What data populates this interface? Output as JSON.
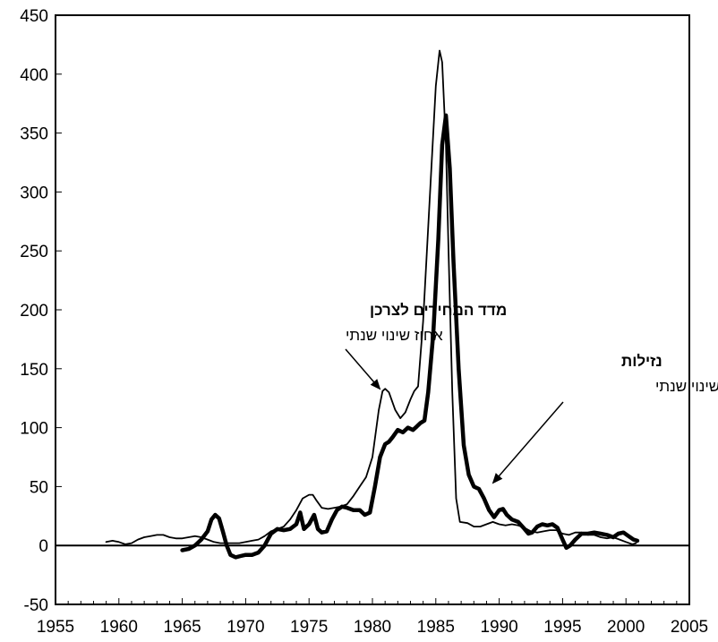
{
  "chart_data": {
    "type": "line",
    "title": "",
    "xlabel": "",
    "ylabel": "",
    "xlim": [
      1955,
      2005
    ],
    "ylim": [
      -50,
      450
    ],
    "x_ticks": [
      1955,
      1960,
      1965,
      1970,
      1975,
      1980,
      1985,
      1990,
      1995,
      2000,
      2005
    ],
    "y_ticks": [
      -50,
      0,
      50,
      100,
      150,
      200,
      250,
      300,
      350,
      400,
      450
    ],
    "grid": false,
    "legend": "none",
    "zero_line": true,
    "series": [
      {
        "name": "מדד המחירים לצרכן",
        "style": "thin",
        "color": "#000000",
        "points": [
          [
            1959.0,
            3
          ],
          [
            1959.5,
            4
          ],
          [
            1960.0,
            3
          ],
          [
            1960.5,
            1
          ],
          [
            1961.0,
            2
          ],
          [
            1961.5,
            5
          ],
          [
            1962.0,
            7
          ],
          [
            1962.5,
            8
          ],
          [
            1963.0,
            9
          ],
          [
            1963.5,
            9
          ],
          [
            1964.0,
            7
          ],
          [
            1964.5,
            6
          ],
          [
            1965.0,
            6
          ],
          [
            1965.5,
            7
          ],
          [
            1966.0,
            8
          ],
          [
            1966.5,
            7
          ],
          [
            1967.0,
            5
          ],
          [
            1967.5,
            3
          ],
          [
            1968.0,
            2
          ],
          [
            1968.5,
            2
          ],
          [
            1969.0,
            2
          ],
          [
            1969.5,
            2
          ],
          [
            1970.0,
            3
          ],
          [
            1970.5,
            4
          ],
          [
            1971.0,
            5
          ],
          [
            1971.5,
            8
          ],
          [
            1972.0,
            12
          ],
          [
            1972.5,
            14
          ],
          [
            1973.0,
            16
          ],
          [
            1973.5,
            22
          ],
          [
            1974.0,
            30
          ],
          [
            1974.5,
            40
          ],
          [
            1975.0,
            43
          ],
          [
            1975.3,
            43
          ],
          [
            1975.6,
            38
          ],
          [
            1976.0,
            32
          ],
          [
            1976.5,
            31
          ],
          [
            1977.0,
            32
          ],
          [
            1977.5,
            33
          ],
          [
            1978.0,
            35
          ],
          [
            1978.5,
            42
          ],
          [
            1979.0,
            50
          ],
          [
            1979.5,
            58
          ],
          [
            1980.0,
            75
          ],
          [
            1980.5,
            115
          ],
          [
            1980.8,
            131
          ],
          [
            1981.0,
            133
          ],
          [
            1981.3,
            130
          ],
          [
            1981.8,
            115
          ],
          [
            1982.2,
            108
          ],
          [
            1982.6,
            113
          ],
          [
            1983.0,
            124
          ],
          [
            1983.3,
            131
          ],
          [
            1983.6,
            135
          ],
          [
            1984.0,
            190
          ],
          [
            1984.5,
            290
          ],
          [
            1985.0,
            390
          ],
          [
            1985.3,
            420
          ],
          [
            1985.5,
            410
          ],
          [
            1985.8,
            340
          ],
          [
            1986.0,
            250
          ],
          [
            1986.3,
            130
          ],
          [
            1986.6,
            40
          ],
          [
            1986.9,
            20
          ],
          [
            1987.5,
            19
          ],
          [
            1988.0,
            16
          ],
          [
            1988.5,
            16
          ],
          [
            1989.0,
            18
          ],
          [
            1989.5,
            20
          ],
          [
            1990.0,
            18
          ],
          [
            1990.5,
            17
          ],
          [
            1991.0,
            18
          ],
          [
            1991.5,
            17
          ],
          [
            1992.0,
            15
          ],
          [
            1992.5,
            12
          ],
          [
            1993.0,
            11
          ],
          [
            1993.5,
            12
          ],
          [
            1994.0,
            13
          ],
          [
            1994.5,
            13
          ],
          [
            1995.0,
            10
          ],
          [
            1995.5,
            9
          ],
          [
            1996.0,
            11
          ],
          [
            1996.5,
            11
          ],
          [
            1997.0,
            9
          ],
          [
            1997.5,
            9
          ],
          [
            1998.0,
            7
          ],
          [
            1998.5,
            6
          ],
          [
            1999.0,
            7
          ],
          [
            1999.5,
            5
          ],
          [
            2000.0,
            3
          ],
          [
            2000.5,
            1
          ],
          [
            2000.8,
            2
          ]
        ]
      },
      {
        "name": "נזילות",
        "style": "thick",
        "color": "#000000",
        "points": [
          [
            1965.0,
            -4
          ],
          [
            1965.5,
            -3
          ],
          [
            1966.0,
            0
          ],
          [
            1966.5,
            5
          ],
          [
            1967.0,
            12
          ],
          [
            1967.3,
            22
          ],
          [
            1967.6,
            26
          ],
          [
            1967.9,
            23
          ],
          [
            1968.2,
            12
          ],
          [
            1968.5,
            0
          ],
          [
            1968.8,
            -8
          ],
          [
            1969.2,
            -10
          ],
          [
            1969.6,
            -9
          ],
          [
            1970.0,
            -8
          ],
          [
            1970.5,
            -8
          ],
          [
            1971.0,
            -6
          ],
          [
            1971.5,
            0
          ],
          [
            1972.0,
            10
          ],
          [
            1972.5,
            14
          ],
          [
            1973.0,
            13
          ],
          [
            1973.5,
            14
          ],
          [
            1974.0,
            18
          ],
          [
            1974.3,
            28
          ],
          [
            1974.6,
            14
          ],
          [
            1975.0,
            18
          ],
          [
            1975.4,
            26
          ],
          [
            1975.7,
            14
          ],
          [
            1976.0,
            11
          ],
          [
            1976.4,
            12
          ],
          [
            1976.8,
            22
          ],
          [
            1977.2,
            30
          ],
          [
            1977.6,
            33
          ],
          [
            1978.0,
            32
          ],
          [
            1978.5,
            30
          ],
          [
            1979.0,
            30
          ],
          [
            1979.4,
            26
          ],
          [
            1979.8,
            28
          ],
          [
            1980.2,
            50
          ],
          [
            1980.6,
            75
          ],
          [
            1981.0,
            86
          ],
          [
            1981.3,
            88
          ],
          [
            1981.6,
            92
          ],
          [
            1982.0,
            98
          ],
          [
            1982.4,
            96
          ],
          [
            1982.8,
            100
          ],
          [
            1983.2,
            98
          ],
          [
            1983.5,
            101
          ],
          [
            1983.8,
            104
          ],
          [
            1984.1,
            106
          ],
          [
            1984.4,
            130
          ],
          [
            1984.8,
            180
          ],
          [
            1985.2,
            260
          ],
          [
            1985.5,
            340
          ],
          [
            1985.8,
            365
          ],
          [
            1986.1,
            320
          ],
          [
            1986.4,
            240
          ],
          [
            1986.8,
            150
          ],
          [
            1987.2,
            85
          ],
          [
            1987.6,
            60
          ],
          [
            1988.0,
            50
          ],
          [
            1988.4,
            48
          ],
          [
            1988.8,
            40
          ],
          [
            1989.2,
            30
          ],
          [
            1989.6,
            24
          ],
          [
            1990.0,
            30
          ],
          [
            1990.3,
            31
          ],
          [
            1990.6,
            26
          ],
          [
            1991.0,
            22
          ],
          [
            1991.5,
            20
          ],
          [
            1992.0,
            14
          ],
          [
            1992.3,
            10
          ],
          [
            1992.6,
            11
          ],
          [
            1993.0,
            16
          ],
          [
            1993.4,
            18
          ],
          [
            1993.8,
            17
          ],
          [
            1994.2,
            18
          ],
          [
            1994.6,
            15
          ],
          [
            1995.0,
            5
          ],
          [
            1995.3,
            -2
          ],
          [
            1995.6,
            0
          ],
          [
            1996.0,
            5
          ],
          [
            1996.5,
            10
          ],
          [
            1997.0,
            10
          ],
          [
            1997.5,
            11
          ],
          [
            1998.0,
            10
          ],
          [
            1998.5,
            9
          ],
          [
            1999.0,
            7
          ],
          [
            1999.4,
            10
          ],
          [
            1999.8,
            11
          ],
          [
            2000.2,
            8
          ],
          [
            2000.6,
            5
          ],
          [
            2000.9,
            4
          ]
        ]
      }
    ],
    "annotations": [
      {
        "id": "cpi",
        "title": "מדד המחירים לצרכן",
        "subtitle": "אחוז שינוי שנתי",
        "target": [
          1980.9,
          132
        ]
      },
      {
        "id": "liquidity",
        "title": "נזילות",
        "subtitle": "אחוז שינוי שנתי",
        "target": [
          1987.8,
          50
        ]
      }
    ]
  }
}
